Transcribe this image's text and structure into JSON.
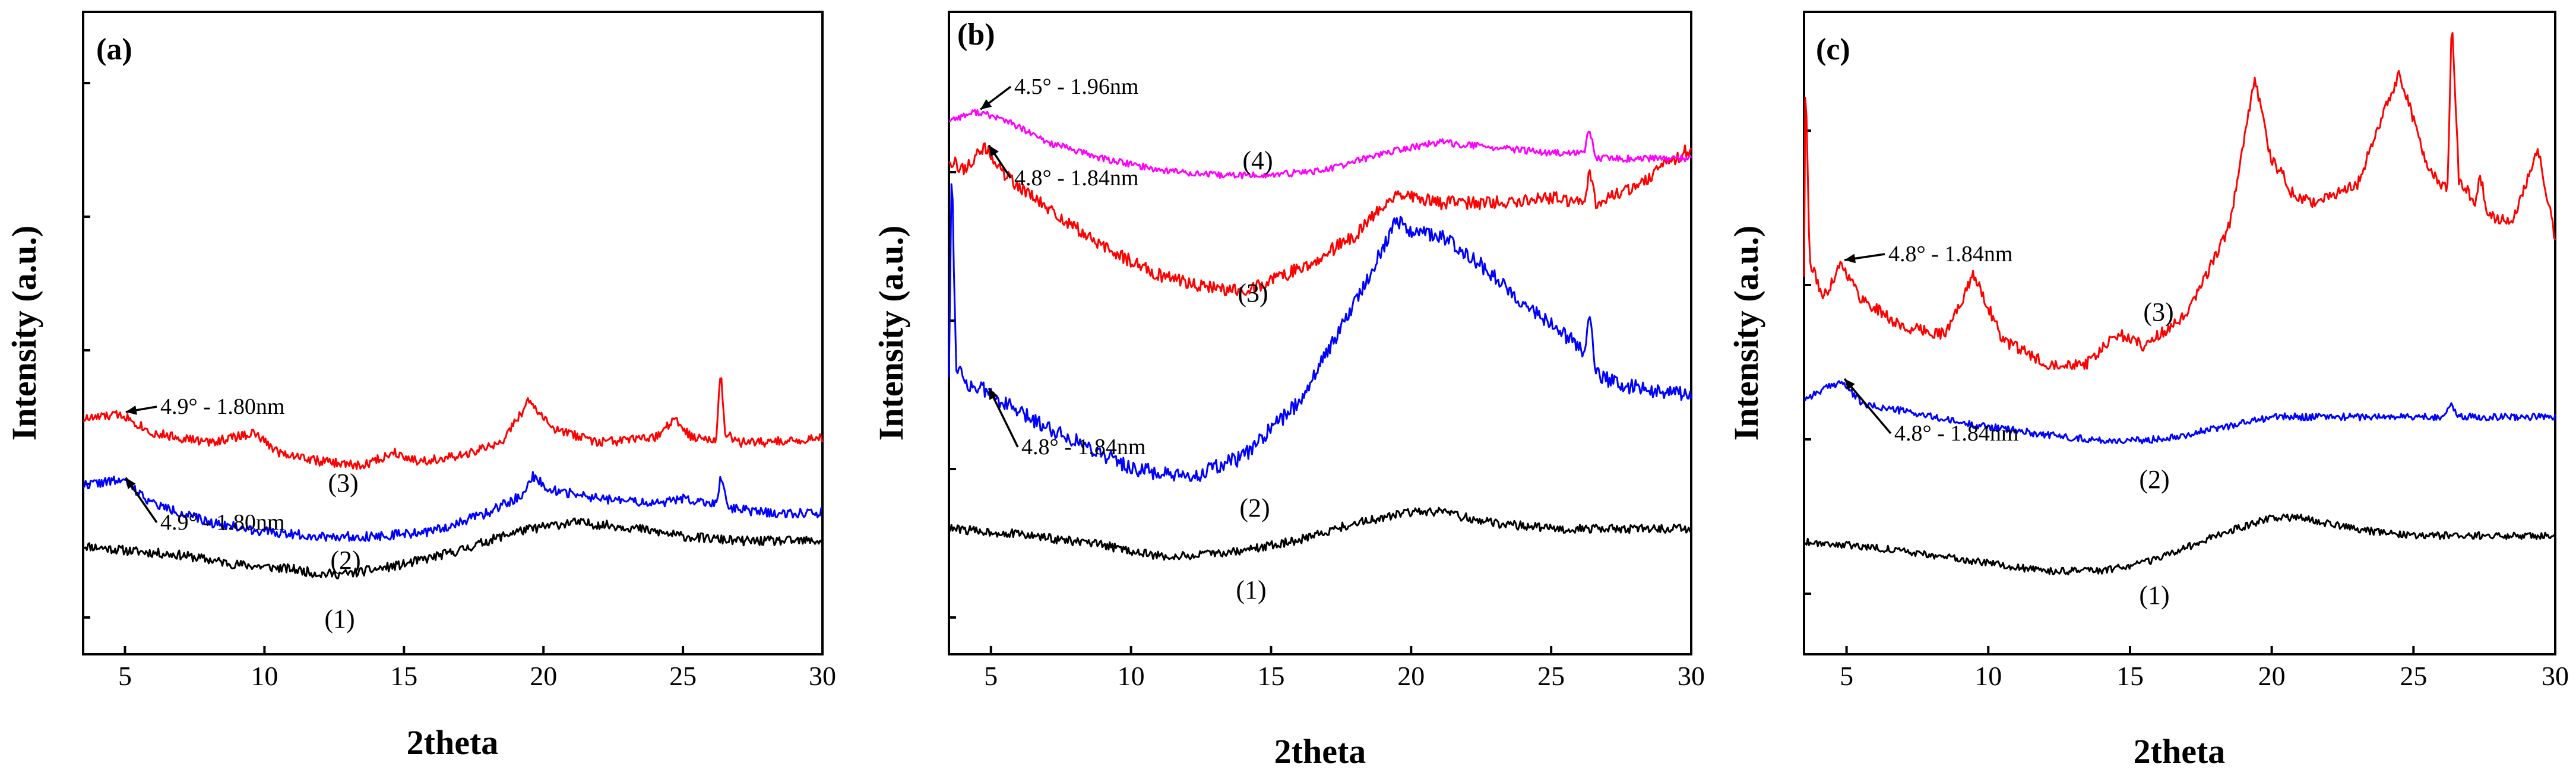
{
  "chart_data": [
    {
      "type": "line",
      "panel_label": "(a)",
      "xlabel": "2theta",
      "ylabel": "Intensity (a.u.)",
      "xlim": [
        3.5,
        30
      ],
      "ylim": [
        0,
        100
      ],
      "xticks": [
        5,
        10,
        15,
        20,
        25,
        30
      ],
      "tick_labels": [
        "5",
        "10",
        "15",
        "20",
        "25",
        "30"
      ],
      "series": [
        {
          "name": "(1)",
          "color": "#000000",
          "noise": 1.0,
          "seed": 11,
          "x": [
            3.5,
            5,
            7,
            9,
            11,
            12,
            13,
            15,
            17,
            19,
            21,
            23,
            25,
            27,
            30
          ],
          "values": [
            11,
            10,
            9,
            7,
            6,
            5,
            5,
            7,
            10,
            14,
            16,
            15,
            13,
            12,
            12
          ]
        },
        {
          "name": "(2)",
          "color": "#0000ff",
          "noise": 1.0,
          "seed": 22,
          "x": [
            3.5,
            4.9,
            6,
            8,
            10,
            12,
            14,
            16,
            18,
            19.3,
            19.6,
            20.2,
            22,
            24,
            25,
            26.2,
            26.35,
            26.6,
            28,
            30
          ],
          "values": [
            24,
            25,
            20,
            16,
            14,
            13,
            13,
            14,
            18,
            22,
            26,
            23,
            21,
            20,
            21,
            20,
            26,
            19,
            18,
            18
          ],
          "label": "4.9° - 1.80nm"
        },
        {
          "name": "(3)",
          "color": "#ff0000",
          "noise": 1.0,
          "seed": 33,
          "x": [
            3.5,
            4.9,
            6,
            8,
            9.6,
            10.5,
            12,
            13.5,
            14.7,
            15.5,
            17,
            18.5,
            19.5,
            20.3,
            22,
            24,
            24.7,
            25.3,
            26.2,
            26.35,
            26.5,
            27,
            28,
            30
          ],
          "values": [
            38,
            39,
            35,
            33,
            35,
            31,
            29,
            28,
            31,
            29,
            30,
            33,
            42,
            36,
            33,
            34,
            38,
            34,
            34,
            49,
            35,
            33,
            33,
            34
          ],
          "label": "4.9° - 1.80nm"
        }
      ],
      "annotations": [
        {
          "text": "4.9° - 1.80nm",
          "series": "(3)",
          "x": 4.9
        },
        {
          "text": "4.9° - 1.80nm",
          "series": "(2)",
          "x": 4.9
        }
      ],
      "curve_labels": [
        {
          "text": "(1)",
          "x": 13
        },
        {
          "text": "(2)",
          "x": 13
        },
        {
          "text": "(3)",
          "x": 13
        }
      ]
    },
    {
      "type": "line",
      "panel_label": "(b)",
      "xlabel": "2theta",
      "ylabel": "Intensity (a.u.)",
      "xlim": [
        3.5,
        30
      ],
      "ylim": [
        0,
        100
      ],
      "xticks": [
        5,
        10,
        15,
        20,
        25,
        30
      ],
      "tick_labels": [
        "5",
        "10",
        "15",
        "20",
        "25",
        "30"
      ],
      "series": [
        {
          "name": "(1)",
          "color": "#000000",
          "noise": 0.8,
          "seed": 44,
          "x": [
            3.5,
            6,
            9,
            11,
            12,
            14,
            16,
            18,
            20,
            21,
            23,
            25,
            27,
            30
          ],
          "values": [
            12,
            11,
            9,
            7,
            7,
            8,
            10,
            13,
            15,
            15,
            13,
            12,
            12,
            12
          ],
          "label": ""
        },
        {
          "name": "(2)",
          "color": "#0000ff",
          "noise": 1.4,
          "seed": 55,
          "x": [
            3.5,
            3.6,
            3.75,
            4.2,
            4.8,
            6,
            8,
            10,
            12,
            14,
            16,
            18,
            19.5,
            20,
            21,
            22,
            24,
            25.5,
            26.2,
            26.35,
            26.6,
            27.5,
            30
          ],
          "values": [
            40,
            79,
            42,
            38,
            37,
            33,
            28,
            23,
            21,
            25,
            35,
            53,
            68,
            66,
            65,
            62,
            53,
            47,
            44,
            52,
            40,
            38,
            36
          ],
          "label": "4.8° - 1.84nm"
        },
        {
          "name": "(3)",
          "color": "#ff0000",
          "noise": 1.2,
          "seed": 66,
          "x": [
            3.5,
            4.0,
            4.8,
            5.5,
            7,
            9,
            11,
            12.5,
            14,
            16,
            18,
            19.5,
            20,
            21,
            23,
            25,
            26.2,
            26.35,
            26.6,
            28,
            30
          ],
          "values": [
            79,
            77,
            81,
            76,
            70,
            63,
            58,
            56,
            55,
            59,
            65,
            73,
            72,
            71,
            71,
            72,
            71,
            77,
            71,
            74,
            81
          ],
          "label": "4.8° - 1.84nm"
        },
        {
          "name": "(4)",
          "color": "#ff00ff",
          "noise": 0.6,
          "seed": 77,
          "x": [
            3.5,
            4.5,
            5.5,
            7,
            9,
            11,
            13,
            15,
            17,
            19,
            21,
            23,
            25,
            26.2,
            26.35,
            26.6,
            28,
            30
          ],
          "values": [
            86,
            87.5,
            86,
            82,
            79,
            77,
            76,
            76,
            77,
            80,
            82,
            81,
            80,
            80,
            85,
            79,
            79,
            79
          ],
          "label": "4.5° - 1.96nm"
        }
      ],
      "annotations": [
        {
          "text": "4.5° - 1.96nm",
          "series": "(4)",
          "x": 4.5
        },
        {
          "text": "4.8° - 1.84nm",
          "series": "(3)",
          "x": 4.8
        },
        {
          "text": "4.8° - 1.84nm",
          "series": "(2)",
          "x": 4.8
        }
      ],
      "curve_labels": [
        {
          "text": "(1)",
          "x": 12
        },
        {
          "text": "(2)",
          "x": 12
        },
        {
          "text": "(3)",
          "x": 12
        },
        {
          "text": "(4)",
          "x": 12
        }
      ]
    },
    {
      "type": "line",
      "panel_label": "(c)",
      "xlabel": "2theta",
      "ylabel": "Intensity (a.u.)",
      "xlim": [
        3.5,
        30
      ],
      "ylim": [
        0,
        100
      ],
      "xticks": [
        5,
        10,
        15,
        20,
        25,
        30
      ],
      "tick_labels": [
        "5",
        "10",
        "15",
        "20",
        "25",
        "30"
      ],
      "series": [
        {
          "name": "(1)",
          "color": "#000000",
          "noise": 0.6,
          "seed": 88,
          "x": [
            3.5,
            6,
            9,
            12,
            14,
            16,
            18,
            20,
            21,
            23,
            25,
            27,
            30
          ],
          "values": [
            9,
            8,
            6,
            4,
            4,
            6,
            10,
            13,
            13,
            11,
            10,
            10,
            10
          ],
          "label": ""
        },
        {
          "name": "(2)",
          "color": "#0000ff",
          "noise": 0.6,
          "seed": 99,
          "x": [
            3.5,
            4.8,
            5.6,
            7,
            9,
            12,
            14,
            15.5,
            17,
            19,
            20,
            22,
            24,
            26,
            26.3,
            26.6,
            28,
            30
          ],
          "values": [
            33,
            36,
            32,
            31,
            29,
            27,
            26,
            26,
            27,
            29,
            30,
            30,
            30,
            30,
            32,
            30,
            30,
            30
          ],
          "label": "4.8° - 1.84nm"
        },
        {
          "name": "(3)",
          "color": "#ff0000",
          "noise": 1.0,
          "seed": 111,
          "x": [
            3.5,
            3.55,
            3.7,
            4.2,
            4.8,
            5.5,
            7,
            8.5,
            9.5,
            10.5,
            12,
            13.5,
            14.6,
            15.5,
            17,
            18.5,
            19.4,
            20,
            20.5,
            20.6,
            21.5,
            23,
            24.5,
            25.5,
            26.2,
            26.35,
            26.6,
            27.2,
            27.35,
            27.6,
            28.5,
            29.4,
            30
          ],
          "values": [
            54,
            88,
            56,
            50,
            56,
            50,
            45,
            44,
            54,
            43,
            39,
            39,
            44,
            42,
            47,
            62,
            87,
            73,
            70,
            68,
            66,
            69,
            88,
            72,
            68,
            98,
            70,
            66,
            71,
            64,
            63,
            75,
            60
          ],
          "label": "4.8° - 1.84nm"
        }
      ],
      "annotations": [
        {
          "text": "4.8° - 1.84nm",
          "series": "(3)",
          "x": 4.8
        },
        {
          "text": "4.8° - 1.84nm",
          "series": "(2)",
          "x": 4.8
        }
      ],
      "curve_labels": [
        {
          "text": "(1)",
          "x": 17.5
        },
        {
          "text": "(2)",
          "x": 17.5
        },
        {
          "text": "(3)",
          "x": 17.5
        }
      ]
    }
  ]
}
